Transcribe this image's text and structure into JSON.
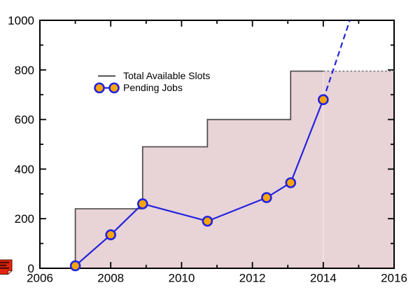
{
  "chart_data": {
    "type": "line",
    "title": "",
    "xlabel": "",
    "ylabel": "",
    "xlim": [
      2006,
      2016
    ],
    "ylim": [
      0,
      1000
    ],
    "x_major_ticks": [
      2006,
      2008,
      2010,
      2012,
      2014,
      2016
    ],
    "x_minor_ticks": [
      2007,
      2009,
      2011,
      2013,
      2015
    ],
    "y_major_ticks": [
      0,
      200,
      400,
      600,
      800,
      1000
    ],
    "y_minor_ticks": [
      100,
      300,
      500,
      700,
      900
    ],
    "grid": "off",
    "legend_position": "upper-left-inside",
    "series": [
      {
        "name": "Total Available Slots",
        "type": "step",
        "solid_until": 2014,
        "points": [
          [
            2007,
            0
          ],
          [
            2007,
            240
          ],
          [
            2008.9,
            240
          ],
          [
            2008.9,
            490
          ],
          [
            2010.73,
            490
          ],
          [
            2010.73,
            600
          ],
          [
            2013.08,
            600
          ],
          [
            2013.08,
            795
          ],
          [
            2014,
            795
          ]
        ],
        "dashed_extension": [
          [
            2014,
            795
          ],
          [
            2016,
            795
          ]
        ]
      },
      {
        "name": "Pending Jobs",
        "type": "line-markers",
        "solid_until": 2014,
        "points": [
          [
            2007,
            10
          ],
          [
            2008,
            135
          ],
          [
            2008.9,
            260
          ],
          [
            2010.73,
            190
          ],
          [
            2012.4,
            285
          ],
          [
            2013.08,
            345
          ],
          [
            2014,
            680
          ]
        ],
        "dashed_extension": [
          [
            2014,
            680
          ],
          [
            2014.75,
            1000
          ]
        ]
      }
    ]
  },
  "colors": {
    "background": "#ffffff",
    "axis": "#000000",
    "step_line": "#4a4a4a",
    "step_dashed": "#808080",
    "area_fill": "#e8d3d7",
    "series_line": "#2424dd",
    "marker_fill": "#fba508",
    "marker_edge": "#2424dd",
    "divider_line": "#ffffff",
    "note_red": "#e2250f",
    "note_dark": "#570c02",
    "note_fold": "#ffd9c9"
  },
  "icons": [
    {
      "name": "red-note-icon",
      "meaning": "red sticky note with text lines (annotation marker)"
    }
  ]
}
